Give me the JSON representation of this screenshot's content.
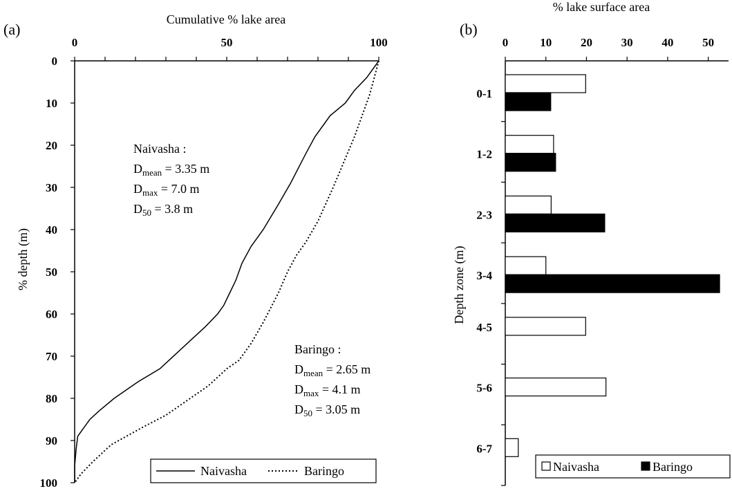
{
  "chart_data": [
    {
      "panel": "(a)",
      "type": "line",
      "xlabel": "Cumulative % lake area",
      "ylabel": "% depth (m)",
      "xlim": [
        0,
        100
      ],
      "ylim": [
        0,
        100
      ],
      "y_inverted": true,
      "x_axis_position": "top",
      "xticks": [
        "0",
        "50",
        "100"
      ],
      "yticks": [
        "0",
        "10",
        "20",
        "30",
        "40",
        "50",
        "60",
        "70",
        "80",
        "90",
        "100"
      ],
      "series": [
        {
          "name": "Naivasha",
          "style": "solid",
          "x": [
            100,
            96,
            92,
            89,
            84,
            82,
            79,
            76,
            71,
            67,
            62,
            58,
            55,
            53,
            51,
            49,
            47,
            43,
            37,
            31,
            28,
            21,
            13,
            8,
            5,
            3,
            1,
            0.5,
            0,
            0
          ],
          "y": [
            0,
            4,
            7,
            10,
            13,
            15,
            18,
            22,
            29,
            34,
            40,
            44,
            48,
            52,
            55,
            58,
            60,
            63,
            67,
            71,
            73,
            76,
            80,
            83,
            85,
            87,
            89,
            92,
            96,
            100
          ]
        },
        {
          "name": "Baringo",
          "style": "dotted",
          "x": [
            100,
            97,
            92,
            85,
            80,
            76,
            73,
            70,
            67,
            62,
            58,
            54,
            50,
            44,
            38,
            30,
            22,
            12,
            6,
            2,
            0
          ],
          "y": [
            0,
            8,
            18,
            30,
            38,
            43,
            46,
            50,
            55,
            62,
            67,
            71,
            73,
            77,
            80,
            84,
            87,
            91,
            95,
            98,
            100
          ]
        }
      ],
      "annotations": [
        {
          "lake": "Naivasha :",
          "lines": [
            {
              "d": "D",
              "sub": "mean",
              "rest": " = 3.35 m"
            },
            {
              "d": "D",
              "sub": "max",
              "rest": " = 7.0 m"
            },
            {
              "d": "D",
              "sub": "50",
              "rest": " = 3.8 m"
            }
          ]
        },
        {
          "lake": "Baringo :",
          "lines": [
            {
              "d": "D",
              "sub": "mean",
              "rest": " = 2.65 m"
            },
            {
              "d": "D",
              "sub": "max",
              "rest": " = 4.1 m"
            },
            {
              "d": "D",
              "sub": "50",
              "rest": " = 3.05 m"
            }
          ]
        }
      ],
      "legend": [
        "Naivasha",
        "Baringo"
      ],
      "legend_position": "bottom-right"
    },
    {
      "panel": "(b)",
      "type": "bar",
      "orientation": "horizontal",
      "xlabel": "% lake surface area",
      "ylabel": "Depth zone (m)",
      "xlim": [
        0,
        55
      ],
      "x_axis_position": "top",
      "xticks": [
        "0",
        "10",
        "20",
        "30",
        "40",
        "50"
      ],
      "categories": [
        "0-1",
        "1-2",
        "2-3",
        "3-4",
        "4-5",
        "5-6",
        "6-7"
      ],
      "series": [
        {
          "name": "Naivasha",
          "color": "#ffffff",
          "values": [
            19.8,
            11.9,
            11.3,
            10.0,
            19.8,
            24.8,
            3.2
          ]
        },
        {
          "name": "Baringo",
          "color": "#000000",
          "values": [
            11.2,
            12.4,
            24.5,
            52.8,
            null,
            null,
            null
          ]
        }
      ],
      "legend": [
        "Naivasha",
        "Baringo"
      ],
      "legend_position": "bottom-right"
    }
  ]
}
